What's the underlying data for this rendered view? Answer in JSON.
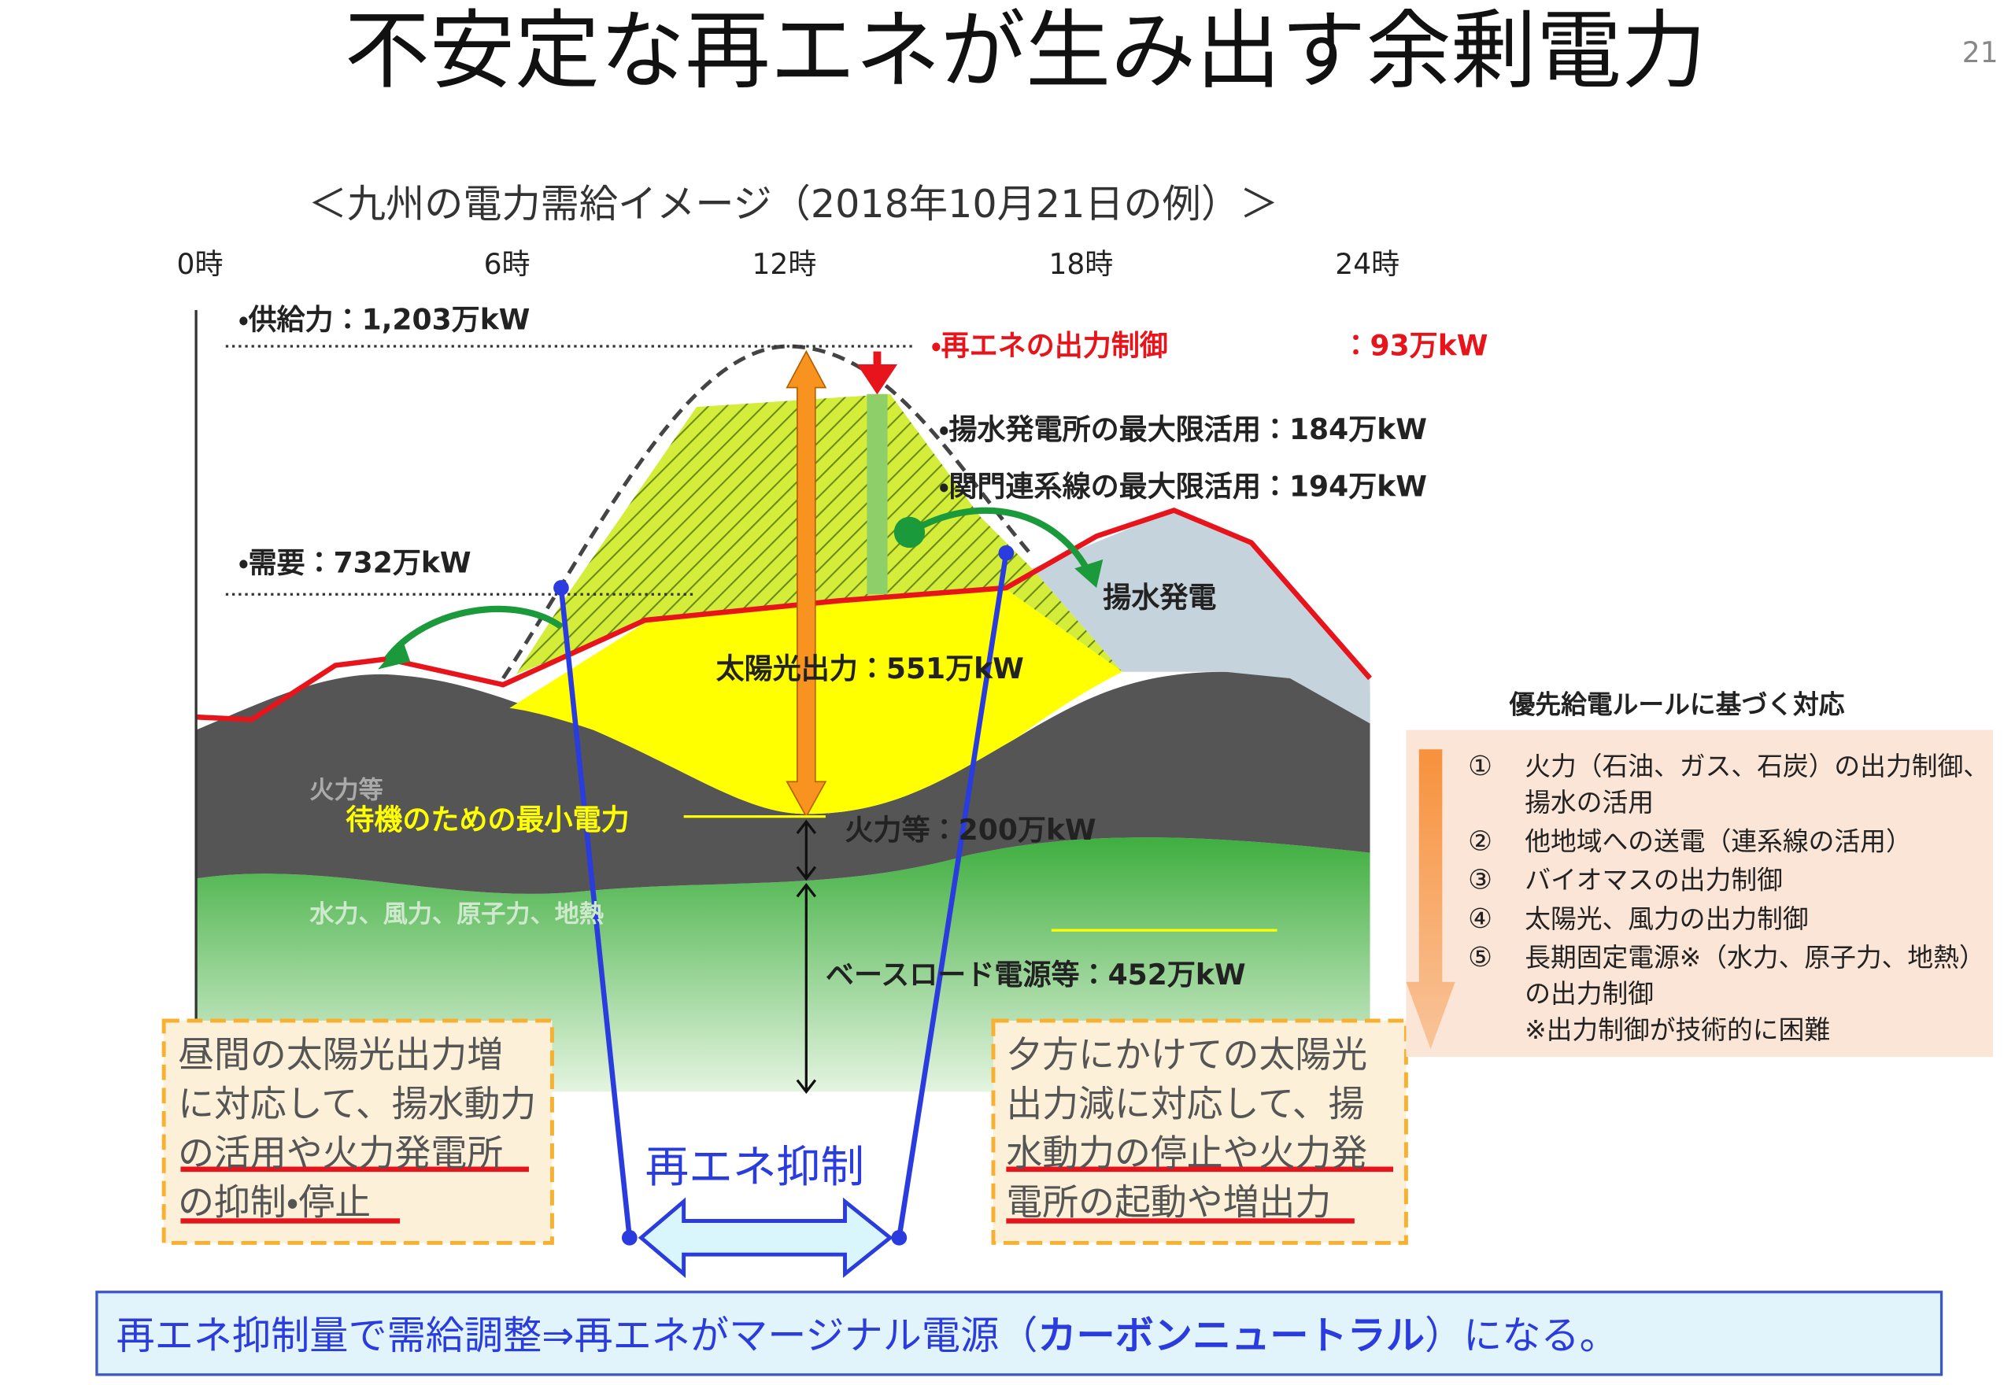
{
  "slide": {
    "title": "不安定な再エネが生み出す余剰電力",
    "page_number": "21"
  },
  "diagram": {
    "title": "＜九州の電力需給イメージ（2018年10月21日の例）＞",
    "time_labels": [
      "0時",
      "6時",
      "12時",
      "18時",
      "24時"
    ],
    "supply": "・供給力：1,203万kW",
    "demand": "・需要：732万kW",
    "curtailment": "・再エネの出力制御",
    "curtailment_amount": "：93万kW",
    "pumped_max": "・揚水発電所の最大限活用：184万kW",
    "kanmon_max": "・関門連系線の最大限活用：194万kW",
    "pumped": "揚水発電",
    "solar": "太陽光出力：551万kW",
    "thermal": "火力等",
    "standby": "待機のための最小電力",
    "thermal_amount": "火力等：200万kW",
    "base_sources": "水力、風力、原子力、地熱",
    "baseload": "ベースロード電源等：452万kW",
    "curtailment_arrow": "再エネ抑制"
  },
  "notes": {
    "left": [
      "昼間の太陽光出力増",
      "に対応して、揚水動力",
      "の活用や火力発電所",
      "の抑制・停止"
    ],
    "right": [
      "夕方にかけての太陽光",
      "出力減に対応して、揚",
      "水動力の停止や火力発",
      "電所の起動や増出力"
    ]
  },
  "priority": {
    "title": "優先給電ルールに基づく対応",
    "items": [
      {
        "number": "①",
        "lines": [
          "火力（石油、ガス、石炭）の出力制御、",
          "揚水の活用"
        ]
      },
      {
        "number": "②",
        "lines": [
          "他地域への送電（連系線の活用）"
        ]
      },
      {
        "number": "③",
        "lines": [
          "バイオマスの出力制御"
        ]
      },
      {
        "number": "④",
        "lines": [
          "太陽光、風力の出力制御"
        ]
      },
      {
        "number": "⑤",
        "lines": [
          "長期固定電源※（水力、原子力、地熱）",
          "の出力制御",
          "※出力制御が技術的に困難"
        ]
      }
    ]
  },
  "footer": [
    "再エネ抑制量で需給調整⇒再エネがマージナル電源（",
    "カーボンニュートラル",
    "）になる。"
  ]
}
